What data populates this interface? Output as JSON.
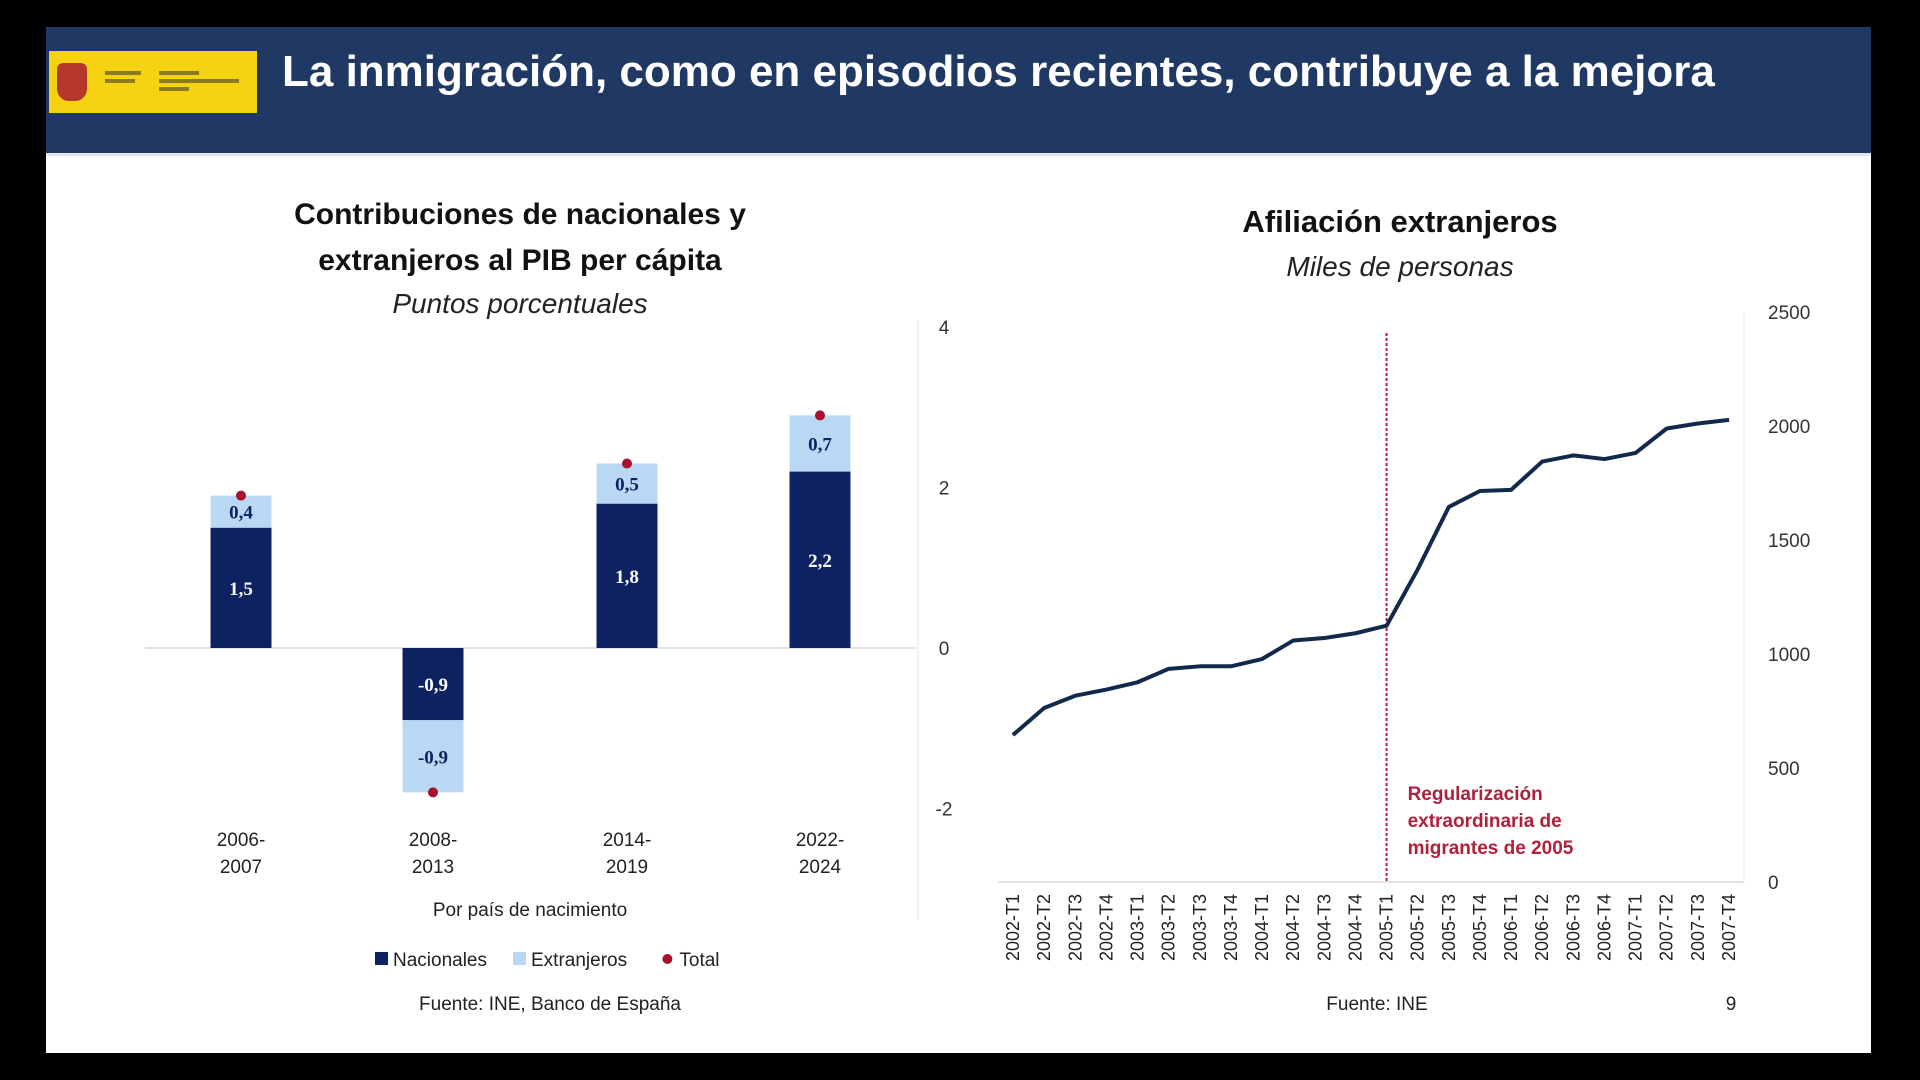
{
  "header": {
    "title": "La inmigración, como en episodios recientes, contribuye a la mejora",
    "logo_text": "Gobierno de España · Ministerio"
  },
  "colors": {
    "header": "#1f3864",
    "nacionales": "#0d2260",
    "extranjeros": "#b9d8f4",
    "total": "#a8102c",
    "line": "#13294b",
    "annotation": "#b0203a"
  },
  "chart_data": [
    {
      "type": "bar",
      "stacked": true,
      "title": "Contribuciones de nacionales y extranjeros al PIB per cápita",
      "title_lines": [
        "Contribuciones de nacionales y",
        "extranjeros al PIB per cápita"
      ],
      "subtitle": "Puntos porcentuales",
      "xlabel": "Por país de nacimiento",
      "categories": [
        "2006-2007",
        "2008-2013",
        "2014-2019",
        "2022-2024"
      ],
      "category_lines": [
        [
          "2006-",
          "2007"
        ],
        [
          "2008-",
          "2013"
        ],
        [
          "2014-",
          "2019"
        ],
        [
          "2022-",
          "2024"
        ]
      ],
      "series": [
        {
          "name": "Nacionales",
          "values": [
            1.5,
            -0.9,
            1.8,
            2.2
          ],
          "labels": [
            "1,5",
            "-0,9",
            "1,8",
            "2,2"
          ]
        },
        {
          "name": "Extranjeros",
          "values": [
            0.4,
            -0.9,
            0.5,
            0.7
          ],
          "labels": [
            "0,4",
            "-0,9",
            "0,5",
            "0,7"
          ]
        },
        {
          "name": "Total",
          "values": [
            1.9,
            -1.8,
            2.3,
            2.9
          ]
        }
      ],
      "ylim": [
        -3,
        4
      ],
      "yticks": [
        "4",
        "2",
        "0",
        "-2"
      ],
      "ytick_values": [
        4,
        2,
        0,
        -2
      ],
      "legend": "bottom",
      "source": "Fuente: INE, Banco de España"
    },
    {
      "type": "line",
      "title": "Afiliación extranjeros",
      "subtitle": "Miles de personas",
      "x": [
        "2002-T1",
        "2002-T2",
        "2002-T3",
        "2002-T4",
        "2003-T1",
        "2003-T2",
        "2003-T3",
        "2003-T4",
        "2004-T1",
        "2004-T2",
        "2004-T3",
        "2004-T4",
        "2005-T1",
        "2005-T2",
        "2005-T3",
        "2005-T4",
        "2006-T1",
        "2006-T2",
        "2006-T3",
        "2006-T4",
        "2007-T1",
        "2007-T2",
        "2007-T3",
        "2007-T4"
      ],
      "values": [
        645,
        763,
        817,
        844,
        876,
        935,
        946,
        946,
        978,
        1059,
        1070,
        1091,
        1124,
        1371,
        1645,
        1715,
        1720,
        1844,
        1871,
        1855,
        1882,
        1989,
        2011,
        2027
      ],
      "ylim": [
        0,
        2500
      ],
      "yticks": [
        "2500",
        "2000",
        "1500",
        "1000",
        "500",
        "0"
      ],
      "ytick_values": [
        2500,
        2000,
        1500,
        1000,
        500,
        0
      ],
      "yaxis_side": "right",
      "marker_line": {
        "x": "2005-T1",
        "annotation": [
          "Regularización",
          "extraordinaria de",
          "migrantes de 2005"
        ]
      },
      "source": "Fuente: INE"
    }
  ],
  "page_number": "9"
}
